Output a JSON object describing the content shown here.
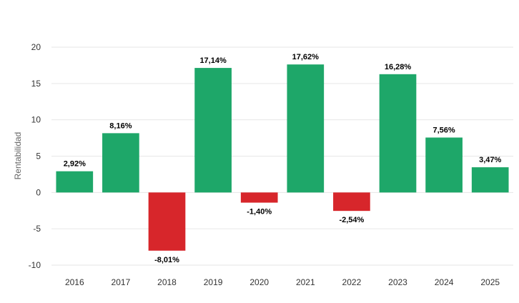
{
  "chart_data": {
    "type": "bar",
    "title": "",
    "xlabel": "",
    "ylabel": "Rentabilidad",
    "ylim": [
      -10,
      20
    ],
    "yticks": [
      -10,
      -5,
      0,
      5,
      10,
      15,
      20
    ],
    "ytick_labels": [
      "-10",
      "-5",
      "0",
      "5",
      "10",
      "15",
      "20"
    ],
    "grid": true,
    "legend": "none",
    "categories": [
      "2016",
      "2017",
      "2018",
      "2019",
      "2020",
      "2021",
      "2022",
      "2023",
      "2024",
      "2025"
    ],
    "values": [
      2.92,
      8.16,
      -8.01,
      17.14,
      -1.4,
      17.62,
      -2.54,
      16.28,
      7.56,
      3.47
    ],
    "data_labels": [
      "2,92%",
      "8,16%",
      "-8,01%",
      "17,14%",
      "-1,40%",
      "17,62%",
      "-2,54%",
      "16,28%",
      "7,56%",
      "3,47%"
    ],
    "colors": {
      "positive": "#1ea769",
      "negative": "#d7262b"
    }
  }
}
